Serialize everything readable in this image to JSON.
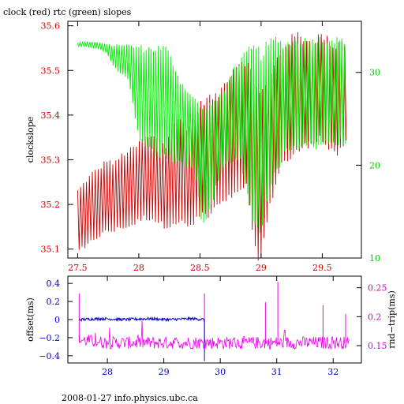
{
  "colors": {
    "clock": "#cc0000",
    "rtc": "#00ee00",
    "offset": "#0000cc",
    "rndtrip": "#ee00ee",
    "axis_left_top": "#cc0000",
    "axis_right_top": "#00cc00",
    "axis_bottom_x": "#cc0000",
    "axis_left_bottom": "#0000cc",
    "axis_right_bottom": "#cc00cc",
    "axis_lower_x": "#0000cc"
  },
  "texts": {
    "title": "clock (red) rtc (green) slopes",
    "ylabel_top": "clockslope",
    "ylabel_bottom_left": "offset(ms)",
    "ylabel_bottom_right": "rnd−trip(ms)",
    "footer": "2008-01-27 info.physics.ubc.ca"
  },
  "chart_data": [
    {
      "type": "line",
      "title": "clock (red) rtc (green) slopes",
      "ylabel": "clockslope",
      "xlim": [
        27.42,
        29.82
      ],
      "ylim": [
        35.08,
        35.61
      ],
      "y2lim": [
        10,
        35.5
      ],
      "xticks": [
        27.5,
        28,
        28.5,
        29,
        29.5
      ],
      "xtick_labels": [
        "27.5",
        "28",
        "28.5",
        "29",
        "29.5"
      ],
      "yticks": [
        35.1,
        35.2,
        35.3,
        35.4,
        35.5,
        35.6
      ],
      "ytick_labels": [
        "35.1",
        "35.2",
        "35.3",
        "35.4",
        "35.5",
        "35.6"
      ],
      "y2ticks": [
        10,
        20,
        30
      ],
      "y2tick_labels": [
        "10",
        "20",
        "30"
      ],
      "series": [
        {
          "axis": "left",
          "x": [
            27.5,
            27.56,
            27.62,
            27.68,
            27.74,
            27.8,
            27.86,
            27.92,
            27.98,
            28.04,
            28.1,
            28.16,
            28.22,
            28.28,
            28.34,
            28.4,
            28.46,
            28.52,
            28.58,
            28.64,
            28.7,
            28.76,
            28.82,
            28.88,
            28.94,
            29.0,
            29.06,
            29.12,
            29.18,
            29.24,
            29.3,
            29.36,
            29.42,
            29.48,
            29.54,
            29.6,
            29.66,
            29.7
          ],
          "low": [
            35.1,
            35.1,
            35.12,
            35.13,
            35.14,
            35.14,
            35.15,
            35.15,
            35.16,
            35.17,
            35.17,
            35.16,
            35.15,
            35.16,
            35.16,
            35.15,
            35.16,
            35.18,
            35.17,
            35.2,
            35.2,
            35.22,
            35.22,
            35.25,
            35.1,
            35.08,
            35.18,
            35.25,
            35.3,
            35.3,
            35.32,
            35.33,
            35.34,
            35.35,
            35.33,
            35.31,
            35.32,
            35.34
          ],
          "high": [
            35.23,
            35.25,
            35.27,
            35.28,
            35.3,
            35.29,
            35.31,
            35.32,
            35.33,
            35.35,
            35.35,
            35.35,
            35.33,
            35.38,
            35.39,
            35.37,
            35.4,
            35.43,
            35.44,
            35.44,
            35.47,
            35.5,
            35.52,
            35.52,
            35.48,
            35.45,
            35.47,
            35.52,
            35.55,
            35.57,
            35.58,
            35.57,
            35.56,
            35.58,
            35.57,
            35.55,
            35.57,
            35.55
          ]
        },
        {
          "axis": "right",
          "x": [
            27.5,
            27.56,
            27.62,
            27.68,
            27.74,
            27.8,
            27.86,
            27.92,
            27.98,
            28.04,
            28.1,
            28.16,
            28.22,
            28.28,
            28.34,
            28.4,
            28.46,
            28.52,
            28.58,
            28.64,
            28.7,
            28.76,
            28.82,
            28.88,
            28.94,
            29.0,
            29.06,
            29.12,
            29.18,
            29.24,
            29.3,
            29.36,
            29.42,
            29.48,
            29.54,
            29.6,
            29.66,
            29.7
          ],
          "low": [
            32.8,
            32.8,
            32.6,
            32.5,
            32.0,
            30.5,
            29.8,
            29.0,
            24.0,
            22.0,
            21.5,
            21.0,
            21.0,
            20.5,
            20.5,
            20.0,
            19.5,
            13.5,
            15.0,
            18.0,
            20.0,
            20.5,
            21.0,
            17.0,
            14.0,
            12.5,
            17.0,
            19.0,
            21.0,
            22.0,
            22.0,
            22.5,
            22.0,
            22.0,
            22.5,
            22.5,
            22.5,
            22.5
          ],
          "high": [
            33.2,
            33.3,
            33.3,
            33.2,
            33.0,
            32.9,
            33.0,
            32.9,
            32.7,
            32.6,
            32.5,
            32.6,
            32.6,
            31.0,
            29.0,
            28.0,
            27.0,
            26.0,
            26.5,
            27.0,
            28.0,
            30.0,
            31.0,
            32.0,
            32.5,
            32.0,
            33.0,
            33.5,
            33.0,
            33.2,
            33.3,
            33.4,
            33.4,
            33.5,
            33.5,
            33.5,
            33.4,
            33.4
          ]
        }
      ]
    },
    {
      "type": "line",
      "ylabel": "offset(ms)",
      "y2label": "rnd−trip(ms)",
      "xlim": [
        27.3,
        32.5
      ],
      "ylim": [
        -0.48,
        0.48
      ],
      "y2lim": [
        0.12,
        0.27
      ],
      "xticks": [
        28,
        29,
        30,
        31,
        32
      ],
      "xtick_labels": [
        "28",
        "29",
        "30",
        "31",
        "32"
      ],
      "yticks": [
        0.4,
        0.2,
        0,
        -0.2,
        -0.4
      ],
      "ytick_labels": [
        "0.4",
        "0.2",
        "0",
        "−0.2",
        "−0.4"
      ],
      "y2ticks": [
        0.25,
        0.2,
        0.15
      ],
      "y2tick_labels": [
        "0.25",
        "0.2",
        "0.15"
      ],
      "series": [
        {
          "axis": "left",
          "x": [
            27.5,
            27.9,
            28.3,
            28.7,
            29.1,
            29.5,
            29.72
          ],
          "y": [
            0.0,
            0.01,
            0.0,
            0.01,
            0.0,
            0.01,
            0.0
          ]
        },
        {
          "axis": "right",
          "x": [
            27.5,
            28.0,
            28.5,
            29.0,
            29.5,
            30.0,
            30.5,
            31.0,
            31.5,
            32.0,
            32.3
          ],
          "y": [
            0.16,
            0.155,
            0.155,
            0.155,
            0.155,
            0.155,
            0.155,
            0.155,
            0.155,
            0.155,
            0.155
          ],
          "spikes": [
            [
              27.5,
              0.24
            ],
            [
              29.72,
              0.24
            ],
            [
              30.8,
              0.225
            ],
            [
              31.02,
              0.26
            ],
            [
              31.82,
              0.22
            ],
            [
              32.22,
              0.205
            ]
          ]
        }
      ]
    }
  ]
}
